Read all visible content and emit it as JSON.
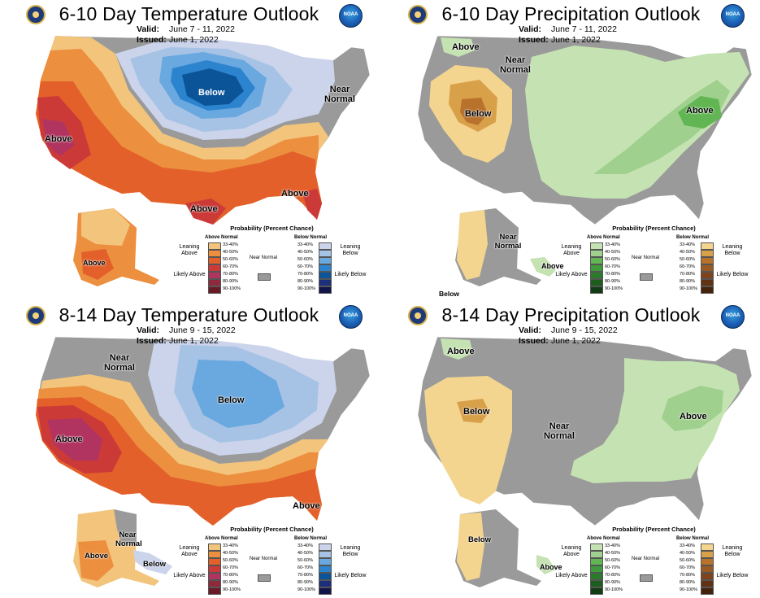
{
  "colors": {
    "gray": "#9a9a9a",
    "above1": "#f2c47c",
    "above2": "#ec8f3f",
    "above3": "#e3602b",
    "above4": "#cc3a38",
    "above5": "#b13460",
    "below1": "#cbd4ea",
    "below2": "#a6c3e6",
    "below3": "#6aa8e0",
    "below4": "#2d84ce",
    "below5": "#0c5498",
    "wet1": "#c5e3b2",
    "wet2": "#9fd08e",
    "wet3": "#62b553",
    "dry1": "#f4d58f",
    "dry2": "#d9a04a",
    "dry3": "#b8722c"
  },
  "panels": [
    {
      "title": "6-10 Day Temperature Outlook",
      "valid_label": "Valid:",
      "valid": "June 7 - 11, 2022",
      "issued_label": "Issued:",
      "issued": "June 1, 2022",
      "map_labels": [
        {
          "text": "Below"
        },
        {
          "text": "Near Normal"
        },
        {
          "text": "Above"
        },
        {
          "text": "Above"
        },
        {
          "text": "Above"
        },
        {
          "text": "Above"
        }
      ],
      "legend": {
        "title": "Probability (Percent Chance)",
        "left_head": "Above Normal",
        "right_head": "Below Normal",
        "near": "Near Normal",
        "lean_left": "Leaning Above",
        "likely_left": "Likely Above",
        "lean_right": "Leaning Below",
        "likely_right": "Likely Below",
        "bins": [
          "33-40%",
          "40-50%",
          "50-60%",
          "60-70%",
          "70-80%",
          "80-90%",
          "90-100%"
        ]
      }
    },
    {
      "title": "6-10 Day Precipitation Outlook",
      "valid_label": "Valid:",
      "valid": "June 7 - 11, 2022",
      "issued_label": "Issued:",
      "issued": "June 1, 2022",
      "map_labels": [
        {
          "text": "Above"
        },
        {
          "text": "Near Normal"
        },
        {
          "text": "Below"
        },
        {
          "text": "Above"
        },
        {
          "text": "Near Normal"
        },
        {
          "text": "Above"
        },
        {
          "text": "Below"
        }
      ],
      "legend": {
        "title": "Probability (Percent Chance)",
        "left_head": "Above Normal",
        "right_head": "Below Normal",
        "near": "Near Normal",
        "lean_left": "Leaning Above",
        "likely_left": "Likely Above",
        "lean_right": "Leaning Below",
        "likely_right": "Likely Below",
        "bins": [
          "33-40%",
          "40-50%",
          "50-60%",
          "60-70%",
          "70-80%",
          "80-90%",
          "90-100%"
        ]
      }
    },
    {
      "title": "8-14 Day Temperature Outlook",
      "valid_label": "Valid:",
      "valid": "June 9 - 15, 2022",
      "issued_label": "Issued:",
      "issued": "June 1, 2022",
      "map_labels": [
        {
          "text": "Near Normal"
        },
        {
          "text": "Below"
        },
        {
          "text": "Above"
        },
        {
          "text": "Above"
        },
        {
          "text": "Near Normal"
        },
        {
          "text": "Above"
        },
        {
          "text": "Below"
        }
      ],
      "legend": {
        "title": "Probability (Percent Chance)",
        "left_head": "Above Normal",
        "right_head": "Below Normal",
        "near": "Near Normal",
        "lean_left": "Leaning Above",
        "likely_left": "Likely Above",
        "lean_right": "Leaning Below",
        "likely_right": "Likely Below",
        "bins": [
          "33-40%",
          "40-50%",
          "50-60%",
          "60-70%",
          "70-80%",
          "80-90%",
          "90-100%"
        ]
      }
    },
    {
      "title": "8-14 Day Precipitation Outlook",
      "valid_label": "Valid:",
      "valid": "June 9 - 15, 2022",
      "issued_label": "Issued:",
      "issued": "June 1, 2022",
      "map_labels": [
        {
          "text": "Above"
        },
        {
          "text": "Below"
        },
        {
          "text": "Near Normal"
        },
        {
          "text": "Above"
        },
        {
          "text": "Below"
        },
        {
          "text": "Above"
        }
      ],
      "legend": {
        "title": "Probability (Percent Chance)",
        "left_head": "Above Normal",
        "right_head": "Below Normal",
        "near": "Near Normal",
        "lean_left": "Leaning Above",
        "likely_left": "Likely Above",
        "lean_right": "Leaning Below",
        "likely_right": "Likely Below",
        "bins": [
          "33-40%",
          "40-50%",
          "50-60%",
          "60-70%",
          "70-80%",
          "80-90%",
          "90-100%"
        ]
      }
    }
  ],
  "logo_text": "NOAA"
}
